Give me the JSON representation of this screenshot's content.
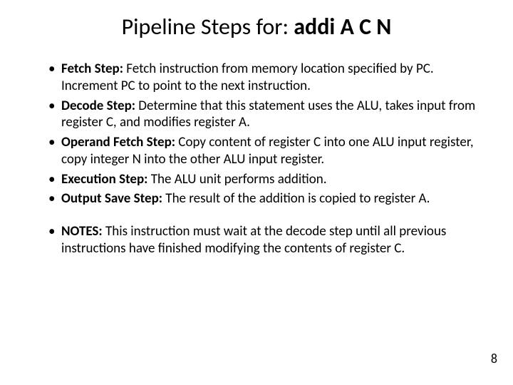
{
  "title_prefix": "Pipeline Steps for: ",
  "title_bold": "addi A C N",
  "bullets1": [
    {
      "label": "Fetch Step:",
      "text": " Fetch instruction from memory location specified by PC. Increment PC to point to the next instruction."
    },
    {
      "label": "Decode Step:",
      "text": " Determine that this statement uses the ALU, takes input from register C, and modifies register A."
    },
    {
      "label": "Operand Fetch Step:",
      "text": " Copy content of register C into one ALU input register, copy integer N into the other ALU input register."
    },
    {
      "label": "Execution Step:",
      "text": " The ALU unit performs addition."
    },
    {
      "label": "Output Save Step:",
      "text": " The result of the addition is copied to register A."
    }
  ],
  "bullets2": [
    {
      "label": "NOTES:",
      "text": " This instruction must wait at the decode step until all previous instructions have finished modifying the contents of register C."
    }
  ],
  "page_number": "8",
  "colors": {
    "background": "#ffffff",
    "text": "#000000"
  },
  "typography": {
    "title_fontsize": 32,
    "body_fontsize": 19,
    "font_family": "Calibri"
  }
}
